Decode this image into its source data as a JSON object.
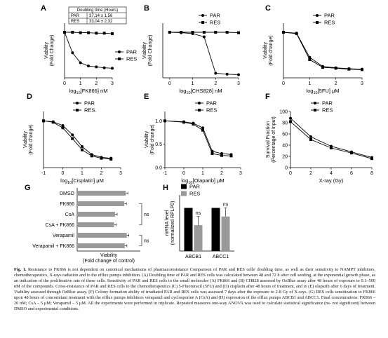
{
  "panels": [
    {
      "id": "A",
      "type": "line-dose",
      "xlabel_pre": "log",
      "xlabel_sub": "10",
      "xlabel_post": "[FK866] nM",
      "ylabel": [
        "Viability",
        "(Fold Change)"
      ],
      "xlim": [
        0,
        3
      ],
      "ylim": [
        0,
        1.2
      ],
      "xticks": [
        0,
        1,
        2,
        3
      ],
      "yticks": [],
      "legend_pos": "right",
      "series": [
        {
          "name": "PAR",
          "marker": "circle",
          "x": [
            0,
            0.5,
            1.0,
            1.5,
            2.0,
            2.5,
            3.0
          ],
          "y": [
            1.0,
            0.55,
            0.33,
            0.26,
            0.24,
            0.22,
            0.21
          ]
        },
        {
          "name": "RES",
          "marker": "square",
          "x": [
            0,
            0.5,
            1.0,
            1.5,
            2.0,
            2.5,
            3.0
          ],
          "y": [
            1.0,
            1.0,
            0.99,
            0.99,
            0.98,
            0.98,
            0.97
          ]
        }
      ],
      "table": {
        "header": "Doubling time (Hours)",
        "rows": [
          [
            "PAR",
            "37,14 ± 1,56"
          ],
          [
            "RES",
            "33,04 ± 2,32"
          ]
        ]
      }
    },
    {
      "id": "B",
      "type": "line-dose",
      "xlabel_pre": "log",
      "xlabel_sub": "10",
      "xlabel_post": "[CHS828] nM",
      "ylabel": [
        "Viability",
        "(Fold Change)"
      ],
      "xlim": [
        -0.3,
        3
      ],
      "ylim": [
        0,
        1.2
      ],
      "xticks": [
        0,
        1,
        2,
        3
      ],
      "yticks": [],
      "legend_pos": "top-right",
      "series": [
        {
          "name": "PAR",
          "marker": "circle",
          "x": [
            0,
            0.5,
            1.0,
            1.5,
            2.0,
            2.5,
            3.0
          ],
          "y": [
            1.0,
            0.99,
            0.97,
            0.9,
            0.1,
            0.08,
            0.07
          ]
        },
        {
          "name": "RES",
          "marker": "square",
          "x": [
            0,
            0.5,
            1.0,
            1.5,
            2.0,
            2.5,
            3.0
          ],
          "y": [
            1.0,
            1.0,
            1.0,
            1.0,
            1.0,
            1.0,
            0.99
          ]
        }
      ]
    },
    {
      "id": "C",
      "type": "line-dose",
      "xlabel_pre": "log",
      "xlabel_sub": "10",
      "xlabel_post": "[5FU] μM",
      "ylabel": [
        "Viability",
        "(Fold change)"
      ],
      "xlim": [
        0,
        3
      ],
      "ylim": [
        0,
        1.2
      ],
      "xticks": [
        0,
        1,
        2,
        3
      ],
      "yticks": [],
      "legend_pos": "top-right",
      "series": [
        {
          "name": "PAR",
          "marker": "circle",
          "x": [
            0,
            0.5,
            1.0,
            1.5,
            2.0,
            2.5,
            3.0
          ],
          "y": [
            1.0,
            0.98,
            0.45,
            0.25,
            0.22,
            0.2,
            0.19
          ]
        },
        {
          "name": "RES",
          "marker": "square",
          "x": [
            0,
            0.5,
            1.0,
            1.5,
            2.0,
            2.5,
            3.0
          ],
          "y": [
            1.0,
            0.97,
            0.4,
            0.23,
            0.21,
            0.19,
            0.18
          ]
        }
      ]
    },
    {
      "id": "D",
      "type": "line-dose",
      "xlabel_pre": "log",
      "xlabel_sub": "10",
      "xlabel_post": "[Cisplatin] μM",
      "ylabel": [
        "Viability",
        "(Fold change)"
      ],
      "xlim": [
        -1,
        3
      ],
      "ylim": [
        0,
        1.2
      ],
      "xticks": [
        -1,
        0,
        1,
        2,
        3
      ],
      "yticks": [],
      "legend_pos": "top-right",
      "series": [
        {
          "name": "PAR",
          "marker": "circle",
          "x": [
            -1,
            -0.5,
            0,
            0.5,
            1.0,
            1.5,
            2.0,
            2.5
          ],
          "y": [
            1.0,
            0.98,
            0.9,
            0.7,
            0.45,
            0.28,
            0.22,
            0.2
          ]
        },
        {
          "name": "RES.",
          "marker": "square",
          "x": [
            -1,
            -0.5,
            0,
            0.5,
            1.0,
            1.5,
            2.0,
            2.5
          ],
          "y": [
            1.0,
            0.97,
            0.85,
            0.62,
            0.38,
            0.25,
            0.2,
            0.18
          ]
        }
      ]
    },
    {
      "id": "E",
      "type": "line-dose",
      "xlabel_pre": "log",
      "xlabel_sub": "10",
      "xlabel_post": "[Olaparib] μM",
      "ylabel": [
        "Viability",
        "(Fold change)"
      ],
      "xlim": [
        -1,
        3
      ],
      "ylim": [
        0,
        1.2
      ],
      "xticks": [
        -1,
        0,
        1,
        2,
        3
      ],
      "yticks": [
        0.0,
        0.5,
        1.0
      ],
      "legend_pos": "top-right",
      "series": [
        {
          "name": "PAR",
          "marker": "circle",
          "x": [
            -1,
            0,
            0.5,
            1.0,
            1.5,
            2.0,
            2.5
          ],
          "y": [
            1.0,
            0.98,
            0.95,
            0.85,
            0.35,
            0.3,
            0.28
          ]
        },
        {
          "name": "RES",
          "marker": "square",
          "x": [
            -1,
            0,
            0.5,
            1.0,
            1.5,
            2.0,
            2.5
          ],
          "y": [
            1.0,
            0.97,
            0.93,
            0.8,
            0.3,
            0.26,
            0.25
          ]
        }
      ]
    },
    {
      "id": "F",
      "type": "line-linear",
      "xlabel": "X-ray (Gy)",
      "ylabel": [
        "Survival Fraction",
        "(Percentage of Input)"
      ],
      "xlim": [
        0,
        8
      ],
      "ylim": [
        0,
        100
      ],
      "xticks": [
        0,
        2,
        4,
        6,
        8
      ],
      "yticks": [
        0,
        20,
        40,
        60,
        80,
        100
      ],
      "legend_pos": "top-right",
      "series": [
        {
          "name": "PAR",
          "marker": "circle",
          "x": [
            0,
            2,
            4,
            6,
            8
          ],
          "y": [
            88,
            55,
            38,
            28,
            18
          ]
        },
        {
          "name": "RES",
          "marker": "square",
          "x": [
            0,
            2,
            4,
            6,
            8
          ],
          "y": [
            82,
            50,
            35,
            26,
            16
          ]
        }
      ]
    },
    {
      "id": "G",
      "type": "hbar",
      "xlabel": [
        "Viability",
        "(Fold change of control)"
      ],
      "categories": [
        "DMSO",
        "FK866",
        "CsA",
        "CsA + FK866",
        "Verapamil",
        "Verapamil + FK866"
      ],
      "values": [
        1.0,
        0.97,
        0.78,
        0.76,
        1.02,
        0.98
      ],
      "xlim": [
        0,
        1.3
      ],
      "xticks": [],
      "ns_labels": [
        "ns",
        "ns"
      ]
    },
    {
      "id": "H",
      "type": "grouped-bar",
      "ylabel": [
        "mRNA level",
        "(normalized RPLP0)"
      ],
      "categories": [
        "ABCB1",
        "ABCC1"
      ],
      "series": [
        {
          "name": "PAR",
          "color": "#000000",
          "values": [
            1.0,
            1.0
          ]
        },
        {
          "name": "RES",
          "color": "#999999",
          "values": [
            0.6,
            0.8
          ]
        }
      ],
      "ylim": [
        0,
        1.3
      ],
      "yticks": [],
      "ns_labels": [
        "ns",
        "ns"
      ]
    }
  ],
  "caption": {
    "bold": "Fig. 1.",
    "text": " Resistance to FK866 is not dependent on canonical mechanisms of pharmacoresistance Comparison of PAR and RES cells' doubling time, as well as their sensitivity to NAMPT inhibitors, chemotherapeutics, X-rays radiation and to the efflux pumps inhibition. (A) Doubling time of PAR and RES cells was calculated between 48 and 72 h after cell seeding, at the exponential growth phase, as an indication of the proliferative rate of these cells. Sensitivity of PAR and RES cells to the small molecules (A) FK866 and (B) CH828 assessed by OzBlue assay after 48 hours of exposure to 0.1–500 nM of the compounds. Cross-resistance of PAR and RES cells to the chemotherapeutics (C) 5-Fluoruracil (5FU) and (D) cisplatin after 48 hours of treatment, and to (E) olaparib after 6 days of treatment. Viability assessed through OzBlue assay. (F) Colony formation ability of irradiated PAR and RES cells was assessed 7 days after the exposure to 2-8 Gy of X-rays. (G) RES cells sensitization to FK866 upon 48 hours of concomitant treatment with the efflux pumps inhibitors verapamil and cyclosporine A (CsA) and (H) expression of the efflux pumps ABCB1 and ABCC1. Final concentrations: FK866 – 20 nM; CsA – 5 μM; Verapamil – 5 μM. All the experiments were performed in triplicate. Repeated measures one-way ANOVA was used to calculate statistical significance (ns- not significant) between DMSO and experimental conditions."
  }
}
